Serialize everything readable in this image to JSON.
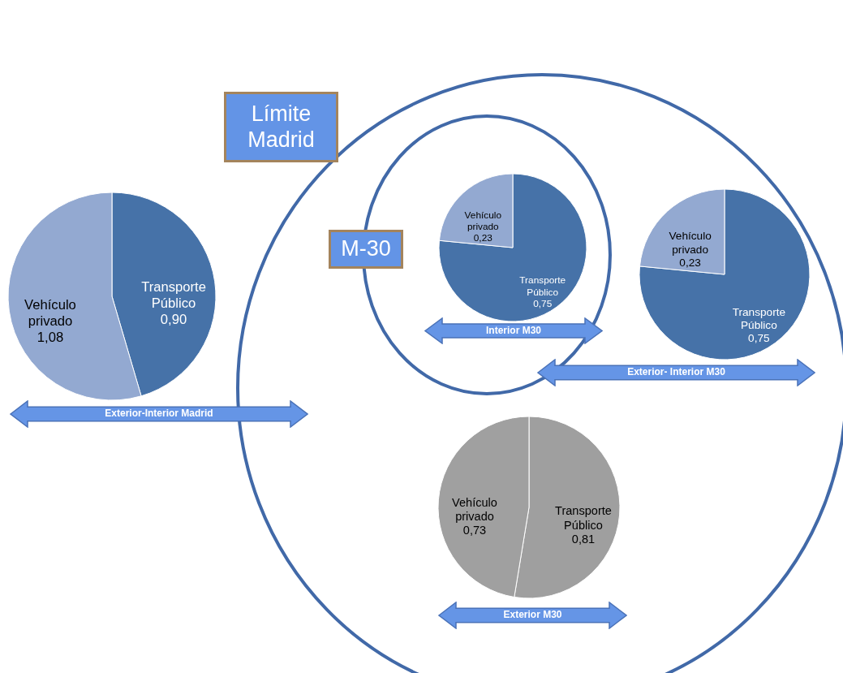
{
  "chart_data": [
    {
      "type": "pie",
      "categories": [
        "Transporte Público",
        "Vehículo privado"
      ],
      "values": [
        0.9,
        1.08
      ],
      "value_labels": [
        "0,90",
        "1,08"
      ],
      "colors": [
        "#4672a8",
        "#93a9d1"
      ],
      "annotations": [
        "Exterior-Interior Madrid"
      ]
    },
    {
      "type": "pie",
      "categories": [
        "Transporte Público",
        "Vehículo privado"
      ],
      "values": [
        0.75,
        0.23
      ],
      "value_labels": [
        "0,75",
        "0,23"
      ],
      "colors": [
        "#4672a8",
        "#93a9d1"
      ],
      "annotations": [
        "Interior M30"
      ]
    },
    {
      "type": "pie",
      "categories": [
        "Transporte Público",
        "Vehículo privado"
      ],
      "values": [
        0.75,
        0.23
      ],
      "value_labels": [
        "0,75",
        "0,23"
      ],
      "colors": [
        "#4672a8",
        "#93a9d1"
      ],
      "annotations": [
        "Exterior- Interior M30"
      ]
    },
    {
      "type": "pie",
      "categories": [
        "Transporte Público",
        "Vehículo privado"
      ],
      "values": [
        0.81,
        0.73
      ],
      "value_labels": [
        "0,81",
        "0,73"
      ],
      "colors": [
        "#9f9f9f",
        "#a0a0a0"
      ],
      "annotations": [
        "Exterior M30"
      ]
    },
    {
      "type": "other",
      "annotations": [
        "Límite Madrid",
        "M-30"
      ]
    }
  ]
}
